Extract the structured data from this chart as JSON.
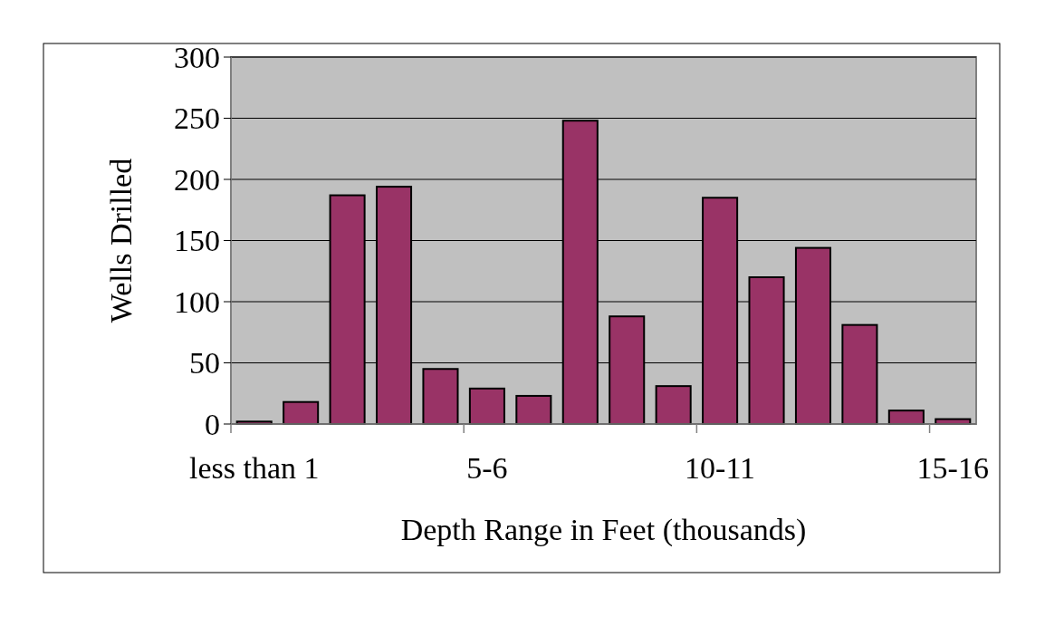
{
  "chart_data": {
    "type": "bar",
    "xlabel": "Depth Range in Feet (thousands)",
    "ylabel": "Wells Drilled",
    "categories": [
      "less than 1",
      null,
      null,
      null,
      null,
      "5-6",
      null,
      null,
      null,
      null,
      "10-11",
      null,
      null,
      null,
      null,
      "15-16"
    ],
    "values": [
      2,
      18,
      187,
      194,
      45,
      29,
      23,
      248,
      88,
      31,
      185,
      120,
      144,
      81,
      11,
      4
    ],
    "color": "#993366",
    "ylim": [
      0,
      300
    ],
    "yticks": [
      0,
      50,
      100,
      150,
      200,
      250,
      300
    ],
    "grid": "y"
  }
}
